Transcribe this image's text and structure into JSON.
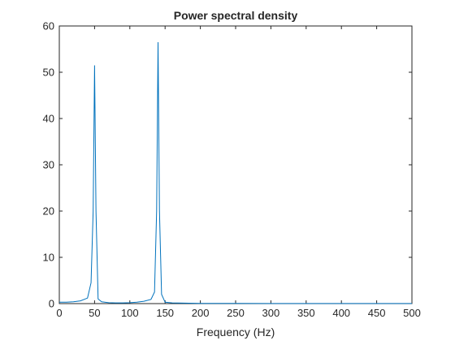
{
  "chart_data": {
    "type": "line",
    "title": "Power spectral density",
    "xlabel": "Frequency (Hz)",
    "ylabel": "",
    "xlim": [
      0,
      500
    ],
    "ylim": [
      0,
      60
    ],
    "xticks": [
      0,
      50,
      100,
      150,
      200,
      250,
      300,
      350,
      400,
      450,
      500
    ],
    "yticks": [
      0,
      10,
      20,
      30,
      40,
      50,
      60
    ],
    "grid": false,
    "line_color": "#0072BD",
    "series": [
      {
        "x": [
          0,
          10,
          20,
          30,
          40,
          45,
          48,
          50,
          52,
          55,
          60,
          70,
          80,
          90,
          100,
          110,
          120,
          130,
          135,
          138,
          140,
          142,
          145,
          150,
          160,
          200,
          250,
          300,
          350,
          400,
          450,
          500
        ],
        "values": [
          0.3,
          0.3,
          0.4,
          0.6,
          1.2,
          4.5,
          20,
          51.5,
          20,
          1.0,
          0.4,
          0.2,
          0.15,
          0.15,
          0.2,
          0.3,
          0.5,
          0.9,
          2.5,
          20,
          56.5,
          20,
          2.0,
          0.3,
          0.15,
          0.05,
          0.04,
          0.03,
          0.03,
          0.03,
          0.03,
          0.03
        ]
      }
    ]
  }
}
